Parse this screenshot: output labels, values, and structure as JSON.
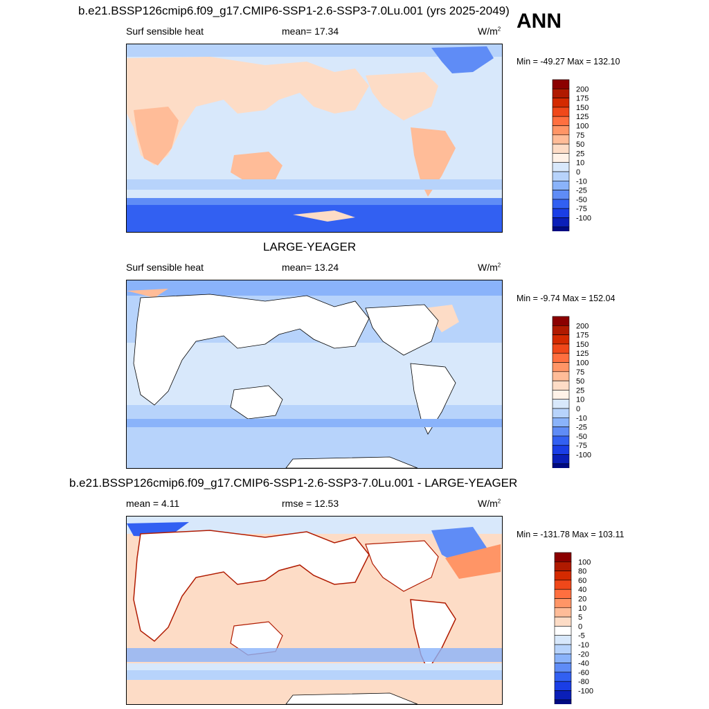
{
  "season": "ANN",
  "panels": [
    {
      "title": "b.e21.BSSP126cmip6.f09_g17.CMIP6-SSP1-2.6-SSP3-7.0Lu.001 (yrs 2025-2049)",
      "left_label": "Surf sensible heat",
      "center_label": "mean=  17.34",
      "units": "W/m",
      "units_sup": "2",
      "minmax": "Min = -49.27 Max = 132.10"
    },
    {
      "title": "LARGE-YEAGER",
      "left_label": "Surf sensible heat",
      "center_label": "mean=  13.24",
      "units": "W/m",
      "units_sup": "2",
      "minmax": "Min =  -9.74 Max = 152.04"
    },
    {
      "title": "b.e21.BSSP126cmip6.f09_g17.CMIP6-SSP1-2.6-SSP3-7.0Lu.001 - LARGE-YEAGER",
      "left_label": "mean =   4.11",
      "center_label": "rmse =  12.53",
      "units": "W/m",
      "units_sup": "2",
      "minmax": "Min = -131.78 Max = 103.11"
    }
  ],
  "chart_data": [
    {
      "type": "heatmap",
      "title": "b.e21.BSSP126cmip6.f09_g17.CMIP6-SSP1-2.6-SSP3-7.0Lu.001 (yrs 2025-2049)",
      "variable": "Surf sensible heat",
      "units": "W/m2",
      "mean": 17.34,
      "min": -49.27,
      "max": 132.1,
      "colorbar_levels": [
        "200",
        "175",
        "150",
        "125",
        "100",
        "75",
        "50",
        "25",
        "10",
        "0",
        "-10",
        "-25",
        "-50",
        "-75",
        "-100"
      ],
      "colorbar_colors": [
        "#8b0000",
        "#b01a00",
        "#d42a00",
        "#f0481a",
        "#ff6f3f",
        "#ff9566",
        "#ffbc98",
        "#fddcc6",
        "#fff2e8",
        "#d8e8fb",
        "#b7d3fb",
        "#8ab3fa",
        "#5f8cf6",
        "#3260f2",
        "#1a3ee6",
        "#0a1fb8",
        "#000a82"
      ]
    },
    {
      "type": "heatmap",
      "title": "LARGE-YEAGER",
      "variable": "Surf sensible heat",
      "units": "W/m2",
      "mean": 13.24,
      "min": -9.74,
      "max": 152.04,
      "colorbar_levels": [
        "200",
        "175",
        "150",
        "125",
        "100",
        "75",
        "50",
        "25",
        "10",
        "0",
        "-10",
        "-25",
        "-50",
        "-75",
        "-100"
      ],
      "colorbar_colors": [
        "#8b0000",
        "#b01a00",
        "#d42a00",
        "#f0481a",
        "#ff6f3f",
        "#ff9566",
        "#ffbc98",
        "#fddcc6",
        "#fff2e8",
        "#d8e8fb",
        "#b7d3fb",
        "#8ab3fa",
        "#5f8cf6",
        "#3260f2",
        "#1a3ee6",
        "#0a1fb8",
        "#000a82"
      ]
    },
    {
      "type": "heatmap",
      "title": "b.e21.BSSP126cmip6.f09_g17.CMIP6-SSP1-2.6-SSP3-7.0Lu.001 - LARGE-YEAGER",
      "units": "W/m2",
      "mean": 4.11,
      "rmse": 12.53,
      "min": -131.78,
      "max": 103.11,
      "colorbar_levels": [
        "100",
        "80",
        "60",
        "40",
        "20",
        "10",
        "5",
        "0",
        "-5",
        "-10",
        "-20",
        "-40",
        "-60",
        "-80",
        "-100"
      ],
      "colorbar_colors": [
        "#8b0000",
        "#b01a00",
        "#d42a00",
        "#f0481a",
        "#ff6f3f",
        "#ff9566",
        "#ffbc98",
        "#fddcc6",
        "#ffffff",
        "#d8e8fb",
        "#b7d3fb",
        "#8ab3fa",
        "#5f8cf6",
        "#3260f2",
        "#1a3ee6",
        "#0a1fb8",
        "#000a82"
      ]
    }
  ]
}
